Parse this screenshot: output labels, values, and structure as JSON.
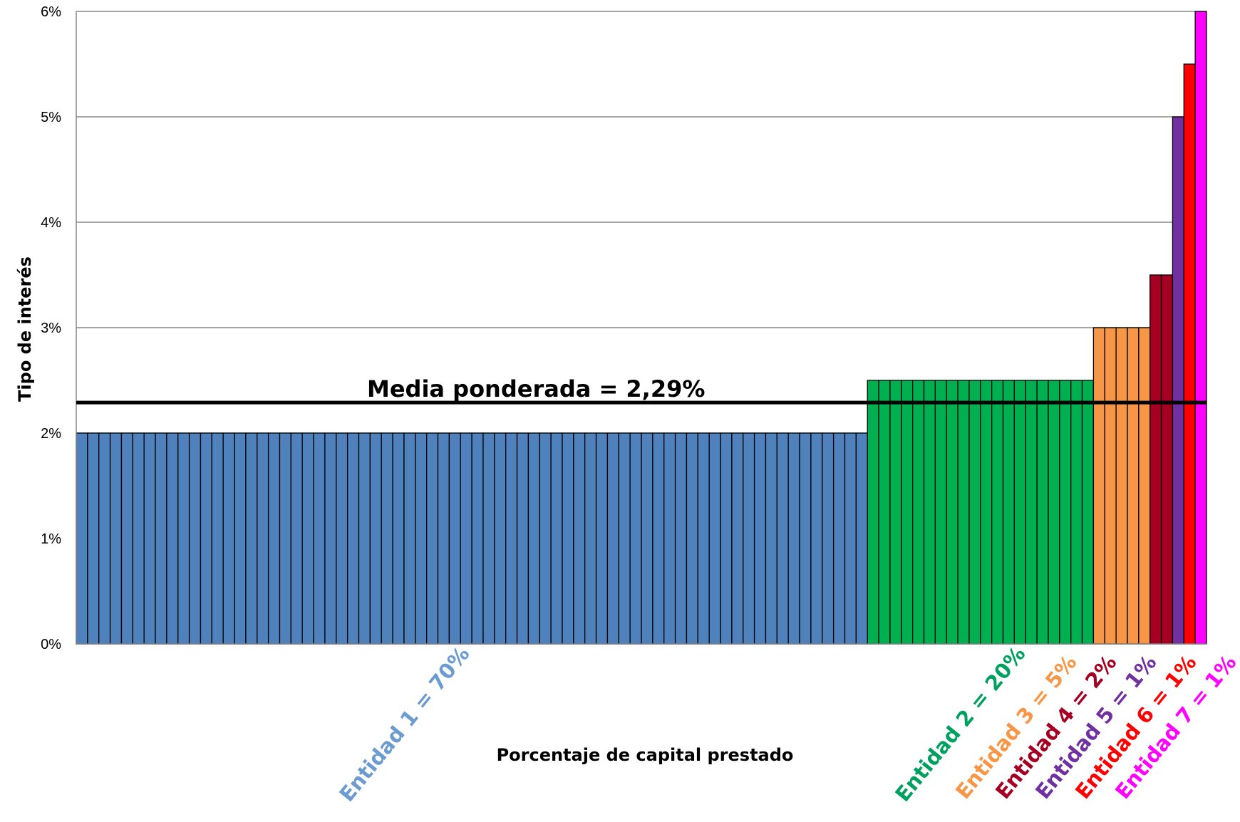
{
  "chart_data": {
    "type": "bar",
    "title": "",
    "xlabel": "Porcentaje de capital prestado",
    "ylabel": "Tipo de interés",
    "ylim": [
      0,
      6
    ],
    "yticks": [
      "0%",
      "1%",
      "2%",
      "3%",
      "4%",
      "5%",
      "6%"
    ],
    "grid": true,
    "bars_total": 100,
    "series": [
      {
        "label": "Entidad 1 = 70%",
        "share_percent": 70,
        "rate_percent": 2.0,
        "color": "#4F81BD",
        "label_color": "#6A9BD1"
      },
      {
        "label": "Entidad 2 = 20%",
        "share_percent": 20,
        "rate_percent": 2.5,
        "color": "#00B050",
        "label_color": "#00A060"
      },
      {
        "label": "Entidad 3 = 5%",
        "share_percent": 5,
        "rate_percent": 3.0,
        "color": "#F79646",
        "label_color": "#F79646"
      },
      {
        "label": "Entidad 4 = 2%",
        "share_percent": 2,
        "rate_percent": 3.5,
        "color": "#A50021",
        "label_color": "#A50021"
      },
      {
        "label": "Entidad 5 = 1%",
        "share_percent": 1,
        "rate_percent": 5.0,
        "color": "#7030A0",
        "label_color": "#7030A0"
      },
      {
        "label": "Entidad 6 = 1%",
        "share_percent": 1,
        "rate_percent": 5.5,
        "color": "#FF0000",
        "label_color": "#FF0000"
      },
      {
        "label": "Entidad 7 = 1%",
        "share_percent": 1,
        "rate_percent": 6.0,
        "color": "#FF00FF",
        "label_color": "#FF00FF"
      }
    ],
    "reference_line": {
      "label": "Media ponderada = 2,29%",
      "value": 2.29
    }
  }
}
